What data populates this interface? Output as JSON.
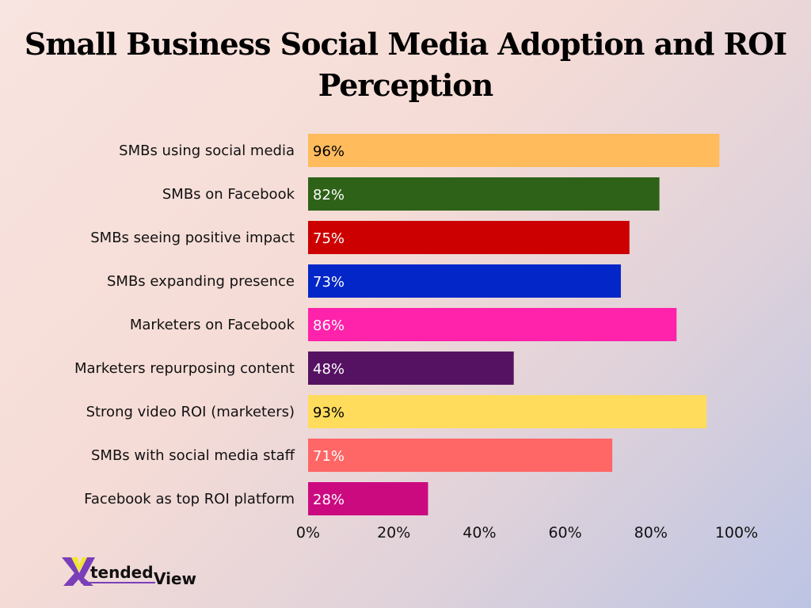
{
  "chart_data": {
    "type": "bar",
    "orientation": "horizontal",
    "title": "Small Business Social Media Adoption and ROI Perception",
    "categories": [
      "SMBs using social media",
      "SMBs on Facebook",
      "SMBs seeing positive impact",
      "SMBs expanding presence",
      "Marketers on Facebook",
      "Marketers repurposing content",
      "Strong video ROI (marketers)",
      "SMBs with social media staff",
      "Facebook as top ROI platform"
    ],
    "values": [
      96,
      82,
      75,
      73,
      86,
      48,
      93,
      71,
      28
    ],
    "data_labels": [
      "96%",
      "82%",
      "75%",
      "73%",
      "86%",
      "48%",
      "93%",
      "71%",
      "28%"
    ],
    "colors": [
      "#ffbb5c",
      "#2e6218",
      "#cc0000",
      "#0326c8",
      "#ff22aa",
      "#561262",
      "#ffdc5c",
      "#ff6666",
      "#cc0a80"
    ],
    "label_colors": [
      "#000000",
      "#ffffff",
      "#ffffff",
      "#ffffff",
      "#ffffff",
      "#ffffff",
      "#000000",
      "#ffffff",
      "#ffffff"
    ],
    "xlim": [
      0,
      100
    ],
    "xticks": [
      "0%",
      "20%",
      "40%",
      "60%",
      "80%",
      "100%"
    ],
    "grid": false,
    "legend": "none"
  },
  "logo": {
    "text": "XtendedView"
  }
}
